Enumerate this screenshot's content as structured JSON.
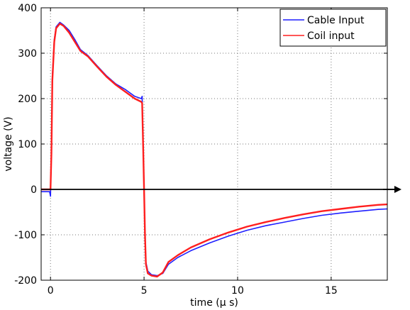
{
  "chart_data": {
    "type": "line",
    "title": "",
    "xlabel": "time (μ s)",
    "ylabel": "voltage (V)",
    "xlim": [
      -0.5,
      18
    ],
    "ylim": [
      -200,
      400
    ],
    "x_ticks": [
      0,
      5,
      10,
      15
    ],
    "y_ticks": [
      -200,
      -100,
      0,
      100,
      200,
      300,
      400
    ],
    "grid": true,
    "legend_position": "top-right",
    "series": [
      {
        "name": "Cable Input",
        "color": "#1f1fff",
        "x": [
          -0.5,
          -0.05,
          0.0,
          0.05,
          0.1,
          0.2,
          0.3,
          0.5,
          0.7,
          1.0,
          1.3,
          1.6,
          2.0,
          2.5,
          3.0,
          3.5,
          4.0,
          4.5,
          4.85,
          4.9,
          4.95,
          5.0,
          5.05,
          5.1,
          5.2,
          5.4,
          5.7,
          6.0,
          6.3,
          6.8,
          7.5,
          8.5,
          9.5,
          10.5,
          11.5,
          12.5,
          13.5,
          14.5,
          15.5,
          16.5,
          17.5,
          18.0
        ],
        "y": [
          -5,
          -5,
          -15,
          90,
          250,
          330,
          358,
          368,
          362,
          350,
          330,
          308,
          295,
          272,
          250,
          232,
          220,
          205,
          200,
          205,
          100,
          0,
          -100,
          -160,
          -180,
          -188,
          -190,
          -185,
          -165,
          -150,
          -135,
          -118,
          -103,
          -90,
          -80,
          -72,
          -64,
          -57,
          -52,
          -48,
          -44,
          -43
        ]
      },
      {
        "name": "Coil input",
        "color": "#ff1f1f",
        "x": [
          -0.5,
          -0.05,
          0.0,
          0.05,
          0.1,
          0.2,
          0.3,
          0.5,
          0.7,
          1.0,
          1.3,
          1.6,
          2.0,
          2.5,
          3.0,
          3.5,
          4.0,
          4.5,
          4.85,
          4.9,
          4.95,
          5.0,
          5.05,
          5.1,
          5.2,
          5.4,
          5.7,
          6.0,
          6.3,
          6.8,
          7.5,
          8.5,
          9.5,
          10.5,
          11.5,
          12.5,
          13.5,
          14.5,
          15.5,
          16.5,
          17.5,
          18.0
        ],
        "y": [
          0,
          0,
          0,
          80,
          240,
          325,
          355,
          365,
          360,
          345,
          325,
          305,
          293,
          270,
          248,
          230,
          215,
          200,
          193,
          190,
          95,
          0,
          -100,
          -165,
          -185,
          -190,
          -192,
          -183,
          -160,
          -145,
          -128,
          -110,
          -95,
          -82,
          -72,
          -63,
          -55,
          -48,
          -43,
          -38,
          -34,
          -33
        ]
      },
      {
        "name": "",
        "color": "#000000",
        "x": [
          -0.5,
          18.0
        ],
        "y": [
          0,
          0
        ]
      }
    ]
  }
}
